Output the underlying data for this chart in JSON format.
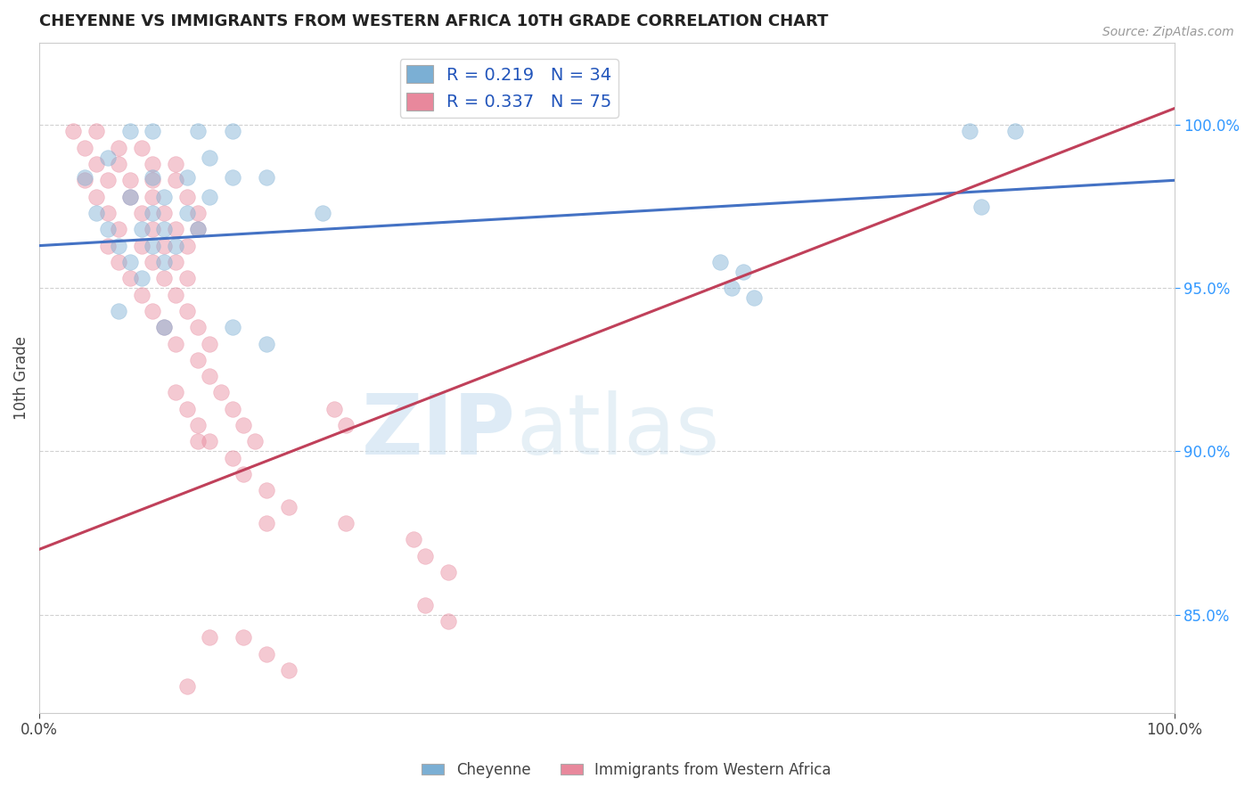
{
  "title": "CHEYENNE VS IMMIGRANTS FROM WESTERN AFRICA 10TH GRADE CORRELATION CHART",
  "source_text": "Source: ZipAtlas.com",
  "ylabel": "10th Grade",
  "watermark_zip": "ZIP",
  "watermark_atlas": "atlas",
  "cheyenne_color": "#7bafd4",
  "immigrants_color": "#e8889c",
  "blue_line_color": "#4472c4",
  "pink_line_color": "#c0405a",
  "xmin": 0.0,
  "xmax": 1.0,
  "ymin": 0.82,
  "ymax": 1.025,
  "x_tick_positions": [
    0.0,
    1.0
  ],
  "x_tick_labels": [
    "0.0%",
    "100.0%"
  ],
  "y_tick_positions": [
    0.85,
    0.9,
    0.95,
    1.0
  ],
  "y_tick_labels": [
    "85.0%",
    "90.0%",
    "95.0%",
    "100.0%"
  ],
  "blue_line_x": [
    0.0,
    1.0
  ],
  "blue_line_y": [
    0.963,
    0.983
  ],
  "pink_line_x": [
    0.0,
    1.0
  ],
  "pink_line_y": [
    0.87,
    1.005
  ],
  "cheyenne_points": [
    [
      0.08,
      0.998
    ],
    [
      0.1,
      0.998
    ],
    [
      0.14,
      0.998
    ],
    [
      0.17,
      0.998
    ],
    [
      0.06,
      0.99
    ],
    [
      0.15,
      0.99
    ],
    [
      0.04,
      0.984
    ],
    [
      0.1,
      0.984
    ],
    [
      0.13,
      0.984
    ],
    [
      0.17,
      0.984
    ],
    [
      0.2,
      0.984
    ],
    [
      0.08,
      0.978
    ],
    [
      0.11,
      0.978
    ],
    [
      0.15,
      0.978
    ],
    [
      0.05,
      0.973
    ],
    [
      0.1,
      0.973
    ],
    [
      0.13,
      0.973
    ],
    [
      0.06,
      0.968
    ],
    [
      0.09,
      0.968
    ],
    [
      0.11,
      0.968
    ],
    [
      0.14,
      0.968
    ],
    [
      0.07,
      0.963
    ],
    [
      0.1,
      0.963
    ],
    [
      0.12,
      0.963
    ],
    [
      0.08,
      0.958
    ],
    [
      0.11,
      0.958
    ],
    [
      0.09,
      0.953
    ],
    [
      0.07,
      0.943
    ],
    [
      0.11,
      0.938
    ],
    [
      0.17,
      0.938
    ],
    [
      0.2,
      0.933
    ],
    [
      0.25,
      0.973
    ],
    [
      0.6,
      0.958
    ],
    [
      0.62,
      0.955
    ],
    [
      0.61,
      0.95
    ],
    [
      0.63,
      0.947
    ],
    [
      0.82,
      0.998
    ],
    [
      0.86,
      0.998
    ],
    [
      0.83,
      0.975
    ]
  ],
  "immigrants_points": [
    [
      0.03,
      0.998
    ],
    [
      0.05,
      0.998
    ],
    [
      0.04,
      0.993
    ],
    [
      0.07,
      0.993
    ],
    [
      0.09,
      0.993
    ],
    [
      0.05,
      0.988
    ],
    [
      0.07,
      0.988
    ],
    [
      0.1,
      0.988
    ],
    [
      0.12,
      0.988
    ],
    [
      0.04,
      0.983
    ],
    [
      0.06,
      0.983
    ],
    [
      0.08,
      0.983
    ],
    [
      0.1,
      0.983
    ],
    [
      0.12,
      0.983
    ],
    [
      0.05,
      0.978
    ],
    [
      0.08,
      0.978
    ],
    [
      0.1,
      0.978
    ],
    [
      0.13,
      0.978
    ],
    [
      0.06,
      0.973
    ],
    [
      0.09,
      0.973
    ],
    [
      0.11,
      0.973
    ],
    [
      0.14,
      0.973
    ],
    [
      0.07,
      0.968
    ],
    [
      0.1,
      0.968
    ],
    [
      0.12,
      0.968
    ],
    [
      0.14,
      0.968
    ],
    [
      0.06,
      0.963
    ],
    [
      0.09,
      0.963
    ],
    [
      0.11,
      0.963
    ],
    [
      0.13,
      0.963
    ],
    [
      0.07,
      0.958
    ],
    [
      0.1,
      0.958
    ],
    [
      0.12,
      0.958
    ],
    [
      0.08,
      0.953
    ],
    [
      0.11,
      0.953
    ],
    [
      0.13,
      0.953
    ],
    [
      0.09,
      0.948
    ],
    [
      0.12,
      0.948
    ],
    [
      0.1,
      0.943
    ],
    [
      0.13,
      0.943
    ],
    [
      0.11,
      0.938
    ],
    [
      0.14,
      0.938
    ],
    [
      0.12,
      0.933
    ],
    [
      0.15,
      0.933
    ],
    [
      0.14,
      0.928
    ],
    [
      0.15,
      0.923
    ],
    [
      0.12,
      0.918
    ],
    [
      0.16,
      0.918
    ],
    [
      0.13,
      0.913
    ],
    [
      0.17,
      0.913
    ],
    [
      0.14,
      0.908
    ],
    [
      0.18,
      0.908
    ],
    [
      0.15,
      0.903
    ],
    [
      0.19,
      0.903
    ],
    [
      0.17,
      0.898
    ],
    [
      0.18,
      0.893
    ],
    [
      0.2,
      0.888
    ],
    [
      0.22,
      0.883
    ],
    [
      0.27,
      0.878
    ],
    [
      0.33,
      0.873
    ],
    [
      0.34,
      0.868
    ],
    [
      0.36,
      0.863
    ],
    [
      0.34,
      0.853
    ],
    [
      0.36,
      0.848
    ],
    [
      0.14,
      0.903
    ],
    [
      0.26,
      0.913
    ],
    [
      0.27,
      0.908
    ],
    [
      0.2,
      0.878
    ],
    [
      0.15,
      0.843
    ],
    [
      0.2,
      0.838
    ],
    [
      0.22,
      0.833
    ],
    [
      0.13,
      0.828
    ],
    [
      0.18,
      0.843
    ]
  ]
}
